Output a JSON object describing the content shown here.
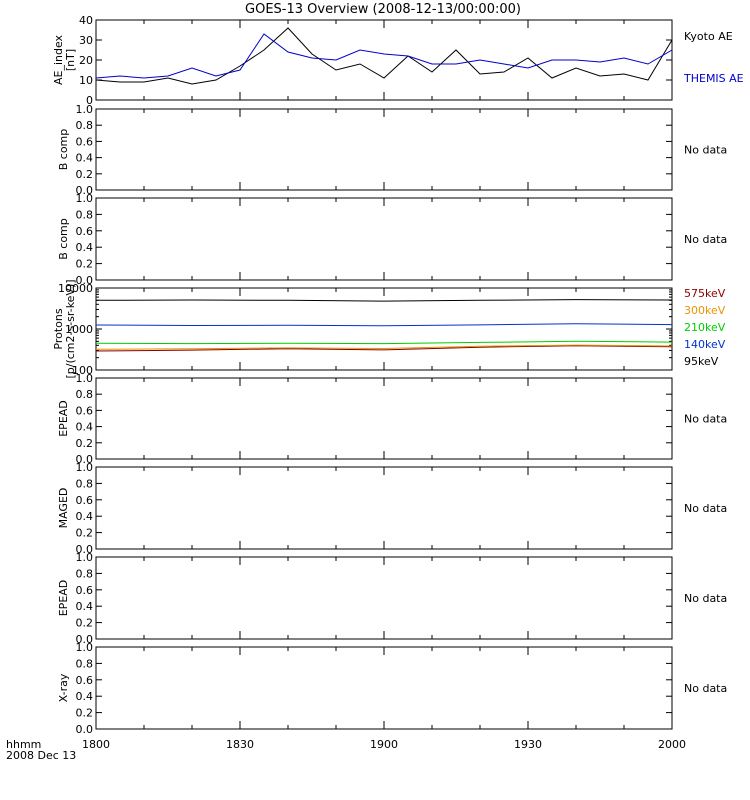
{
  "page": {
    "title": "GOES-13 Overview (2008-12-13/00:00:00)",
    "time_label_line1": "hhmm",
    "time_label_line2": "2008 Dec 13",
    "no_data_text": "No data"
  },
  "chart_data": [
    {
      "type": "line",
      "panel": "ae",
      "ylabel_line1": "AE_index",
      "ylabel_line2": "[nT]",
      "ylim": [
        0,
        40
      ],
      "yticks": [
        "0",
        "10",
        "20",
        "30",
        "40"
      ],
      "xlim": [
        1800,
        2000
      ],
      "xticks": [
        "1800",
        "1830",
        "1900",
        "1930",
        "2000"
      ],
      "x": [
        1800,
        1805,
        1810,
        1815,
        1820,
        1825,
        1830,
        1835,
        1840,
        1845,
        1850,
        1855,
        1900,
        1905,
        1910,
        1915,
        1920,
        1925,
        1930,
        1935,
        1940,
        1945,
        1950,
        1955,
        2000
      ],
      "series": [
        {
          "name": "Kyoto AE",
          "color": "#000000",
          "values": [
            10,
            9,
            9,
            11,
            8,
            10,
            17,
            25,
            36,
            23,
            15,
            18,
            11,
            22,
            14,
            25,
            13,
            14,
            21,
            11,
            16,
            12,
            13,
            10,
            30
          ]
        },
        {
          "name": "THEMIS AE",
          "color": "#0000cc",
          "values": [
            11,
            12,
            11,
            12,
            16,
            12,
            15,
            33,
            24,
            21,
            20,
            25,
            23,
            22,
            18,
            18,
            20,
            18,
            16,
            20,
            20,
            19,
            21,
            18,
            25
          ]
        }
      ]
    },
    {
      "type": "line",
      "panel": "b-comp-1",
      "ylabel_line1": "B comp",
      "ylim": [
        0,
        1
      ],
      "yticks": [
        "0.0",
        "0.2",
        "0.4",
        "0.6",
        "0.8",
        "1.0"
      ],
      "status": "No data"
    },
    {
      "type": "line",
      "panel": "b-comp-2",
      "ylabel_line1": "B comp",
      "ylim": [
        0,
        1
      ],
      "yticks": [
        "0.0",
        "0.2",
        "0.4",
        "0.6",
        "0.8",
        "1.0"
      ],
      "status": "No data"
    },
    {
      "type": "line",
      "panel": "protons",
      "ylabel_line1": "Protons",
      "ylabel_line2": "[p/(cm2-s-sr-keV)]",
      "yscale": "log",
      "ylim": [
        100,
        10000
      ],
      "yticks": [
        "100",
        "1000",
        "10000"
      ],
      "x": [
        1800,
        1820,
        1840,
        1900,
        1920,
        1940,
        2000
      ],
      "series": [
        {
          "name": "575keV",
          "color": "#8b0000",
          "values": [
            290,
            305,
            330,
            310,
            360,
            390,
            370
          ]
        },
        {
          "name": "300keV",
          "color": "#e69500",
          "values": [
            320,
            330,
            345,
            335,
            380,
            405,
            385
          ]
        },
        {
          "name": "210keV",
          "color": "#00cc00",
          "values": [
            450,
            440,
            450,
            440,
            470,
            500,
            480
          ]
        },
        {
          "name": "140keV",
          "color": "#0033cc",
          "values": [
            1250,
            1220,
            1230,
            1200,
            1260,
            1350,
            1280
          ]
        },
        {
          "name": "95keV",
          "color": "#000000",
          "values": [
            5000,
            5100,
            5000,
            4800,
            5000,
            5200,
            5100
          ]
        }
      ]
    },
    {
      "type": "line",
      "panel": "epead-1",
      "ylabel_line1": "EPEAD",
      "ylim": [
        0,
        1
      ],
      "yticks": [
        "0.0",
        "0.2",
        "0.4",
        "0.6",
        "0.8",
        "1.0"
      ],
      "status": "No data"
    },
    {
      "type": "line",
      "panel": "maged",
      "ylabel_line1": "MAGED",
      "ylim": [
        0,
        1
      ],
      "yticks": [
        "0.0",
        "0.2",
        "0.4",
        "0.6",
        "0.8",
        "1.0"
      ],
      "status": "No data"
    },
    {
      "type": "line",
      "panel": "epead-2",
      "ylabel_line1": "EPEAD",
      "ylim": [
        0,
        1
      ],
      "yticks": [
        "0.0",
        "0.2",
        "0.4",
        "0.6",
        "0.8",
        "1.0"
      ],
      "status": "No data"
    },
    {
      "type": "line",
      "panel": "x-ray",
      "ylabel_line1": "X-ray",
      "ylim": [
        0,
        1
      ],
      "yticks": [
        "0.0",
        "0.2",
        "0.4",
        "0.6",
        "0.8",
        "1.0"
      ],
      "status": "No data"
    }
  ]
}
